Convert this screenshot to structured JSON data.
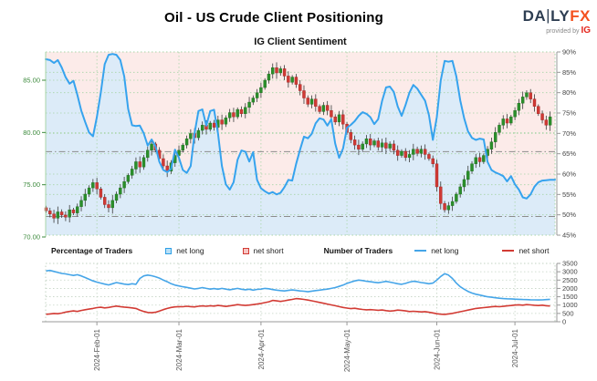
{
  "header": {
    "title": "Oil - US Crude Client Positioning",
    "subtitle": "IG Client Sentiment",
    "logo": {
      "brand_da": "DA",
      "brand_bar": "|",
      "brand_ly": "LY",
      "brand_fx": "FX",
      "provided_by": "provided by",
      "ig": "IG"
    }
  },
  "legend": {
    "percentage_group": "Percentage of Traders",
    "number_group": "Number of Traders",
    "pct_net_long": "net long",
    "pct_net_short": "net short",
    "num_net_long": "net long",
    "num_net_short": "net short"
  },
  "colors": {
    "sentiment_line": "#36a3ee",
    "fill_above_line": "#fcebe9",
    "fill_below_line": "#dcebf8",
    "candle_up": "#2a8f2a",
    "candle_up_edge": "#1e6b1e",
    "candle_down": "#cf3a34",
    "candle_down_edge": "#a02020",
    "wick": "#3a3a3a",
    "grid_green": "#a8d5a8",
    "grid_gray": "#c3d3c3",
    "price_label_green": "#3c8a3c",
    "axis_label_gray": "#444444",
    "date_label_gray": "#555555",
    "ref_line_gray": "#8c8c8c",
    "count_long_blue": "#45a5e8",
    "count_short_red": "#d23b34",
    "axis_line": "#999999"
  },
  "chart_data": [
    {
      "type": "candlestick+line",
      "title": "IG Client Sentiment",
      "description": "Daily US Crude price candles (left axis) overlaid with IG client net-long sentiment percent (right axis); area above sentiment line shaded red, below shaded blue",
      "price_axis": {
        "side": "left",
        "tick_values": [
          85,
          80,
          75,
          70
        ],
        "tick_labels": [
          "85.00",
          "80.00",
          "75.00",
          "70.00"
        ],
        "min": 70.0,
        "max": 87.6
      },
      "percent_axis": {
        "side": "right",
        "min": 45,
        "max": 90,
        "step": 5,
        "tick_values": [
          90,
          85,
          80,
          75,
          70,
          65,
          60,
          55,
          50,
          45
        ],
        "tick_labels": [
          "90%",
          "85%",
          "80%",
          "75%",
          "70%",
          "65%",
          "60%",
          "55%",
          "50%",
          "45%"
        ]
      },
      "x_axis": {
        "month_labels": [
          "2024-Feb-01",
          "2024-Mar-01",
          "2024-Apr-01",
          "2024-May-01",
          "2024-Jun-01",
          "2024-Jul-01"
        ],
        "month_day_index": [
          13,
          34,
          55,
          77,
          100,
          120
        ],
        "days_total": 130,
        "date_range": "2024-Jan-15 to 2024-Jul-12"
      },
      "reference_lines_pct": [
        65.5,
        49.6
      ],
      "grid": true,
      "wick_extra": 0.32,
      "closes": [
        72.5,
        72.2,
        71.8,
        72.4,
        72.1,
        71.9,
        72.6,
        72.3,
        72.9,
        73.5,
        74.1,
        74.7,
        75.2,
        74.6,
        73.8,
        73.1,
        72.8,
        73.5,
        74.1,
        74.7,
        75.3,
        75.9,
        76.5,
        77.2,
        76.7,
        77.6,
        78.3,
        78.9,
        78.3,
        77.5,
        76.8,
        76.3,
        77.1,
        77.8,
        78.3,
        78.8,
        79.4,
        79.9,
        79.5,
        80.2,
        80.7,
        80.3,
        80.9,
        80.5,
        81.2,
        80.8,
        81.4,
        81.9,
        81.5,
        82.2,
        81.8,
        82.4,
        82.9,
        83.3,
        83.8,
        84.3,
        85.0,
        85.6,
        86.2,
        85.7,
        86.1,
        85.4,
        84.8,
        85.3,
        84.6,
        84.0,
        83.3,
        82.7,
        83.2,
        82.5,
        82.0,
        82.6,
        82.1,
        81.5,
        81.0,
        81.7,
        80.8,
        80.0,
        79.3,
        78.8,
        78.4,
        78.9,
        79.4,
        78.8,
        79.2,
        78.6,
        79.0,
        78.5,
        78.9,
        78.3,
        77.8,
        78.2,
        77.6,
        77.9,
        78.4,
        78.0,
        78.4,
        77.9,
        77.5,
        77.0,
        74.8,
        73.2,
        72.6,
        73.0,
        73.4,
        74.1,
        74.8,
        75.5,
        76.3,
        77.0,
        77.6,
        77.2,
        77.8,
        78.4,
        79.1,
        80.0,
        80.7,
        81.3,
        80.9,
        81.5,
        82.1,
        82.8,
        83.4,
        83.8,
        83.2,
        82.5,
        81.8,
        81.2,
        80.7,
        81.5
      ],
      "sentiment_pct": [
        88.2,
        88.0,
        87.3,
        88.0,
        86.2,
        83.8,
        82.2,
        82.9,
        79.5,
        75.6,
        72.8,
        70.2,
        69.3,
        74.0,
        80.0,
        87.0,
        89.3,
        89.5,
        89.3,
        88.0,
        84.0,
        76.0,
        72.0,
        71.8,
        71.9,
        70.0,
        67.0,
        68.5,
        66.9,
        63.0,
        61.0,
        60.5,
        61.3,
        66.0,
        64.0,
        61.0,
        60.3,
        62.0,
        70.0,
        75.5,
        75.9,
        71.9,
        75.5,
        75.8,
        70.0,
        62.0,
        57.5,
        56.2,
        58.0,
        63.5,
        65.8,
        65.5,
        63.1,
        65.4,
        58.6,
        56.5,
        55.8,
        55.2,
        55.6,
        55.0,
        55.4,
        56.8,
        58.6,
        58.4,
        62.5,
        66.0,
        69.2,
        68.8,
        69.9,
        72.5,
        73.7,
        73.4,
        71.9,
        73.5,
        67.5,
        64.0,
        66.3,
        71.4,
        72.1,
        73.0,
        74.3,
        75.2,
        74.8,
        74.0,
        72.3,
        73.5,
        78.0,
        81.3,
        81.5,
        80.2,
        76.6,
        74.3,
        77.0,
        80.0,
        81.9,
        81.0,
        79.5,
        78.0,
        74.5,
        68.4,
        74.0,
        83.0,
        87.8,
        87.6,
        87.8,
        84.0,
        78.1,
        73.7,
        70.5,
        68.9,
        68.4,
        68.7,
        68.5,
        63.0,
        61.0,
        60.4,
        60.0,
        59.5,
        58.2,
        59.5,
        57.5,
        56.2,
        54.3,
        54.0,
        55.0,
        56.9,
        58.0,
        58.4,
        58.5,
        58.6
      ]
    },
    {
      "type": "line",
      "description": "Number of traders net long and net short (daily)",
      "y_axis": {
        "side": "right",
        "min": 0,
        "max": 3500,
        "step": 500,
        "tick_labels": [
          "3500",
          "3000",
          "2500",
          "2000",
          "1500",
          "1000",
          "500",
          "0"
        ]
      },
      "grid": true,
      "series": [
        {
          "name": "net long",
          "color_key": "count_long_blue",
          "values": [
            3050,
            3080,
            3020,
            2960,
            2900,
            2870,
            2820,
            2780,
            2820,
            2750,
            2650,
            2550,
            2450,
            2380,
            2320,
            2260,
            2210,
            2280,
            2350,
            2310,
            2260,
            2230,
            2280,
            2250,
            2600,
            2750,
            2800,
            2760,
            2700,
            2620,
            2500,
            2400,
            2280,
            2200,
            2150,
            2100,
            2060,
            2010,
            1970,
            2000,
            2050,
            2000,
            1960,
            1990,
            1950,
            2000,
            1960,
            1920,
            1960,
            2000,
            1950,
            1920,
            1950,
            1900,
            1940,
            1960,
            2000,
            1980,
            1930,
            1900,
            1870,
            1850,
            1880,
            1910,
            1880,
            1850,
            1830,
            1800,
            1840,
            1870,
            1900,
            1930,
            1960,
            2000,
            2050,
            2120,
            2200,
            2300,
            2380,
            2450,
            2500,
            2470,
            2430,
            2400,
            2370,
            2340,
            2380,
            2420,
            2380,
            2330,
            2280,
            2250,
            2300,
            2380,
            2430,
            2400,
            2350,
            2320,
            2280,
            2320,
            2500,
            2720,
            2880,
            2800,
            2600,
            2320,
            2100,
            1950,
            1820,
            1720,
            1650,
            1600,
            1550,
            1500,
            1470,
            1440,
            1410,
            1390,
            1380,
            1370,
            1355,
            1345,
            1335,
            1330,
            1320,
            1310,
            1305,
            1315,
            1330,
            1345
          ]
        },
        {
          "name": "net short",
          "color_key": "count_short_red",
          "values": [
            450,
            470,
            500,
            480,
            520,
            580,
            620,
            650,
            620,
            680,
            720,
            760,
            800,
            850,
            870,
            830,
            860,
            900,
            940,
            910,
            880,
            860,
            830,
            800,
            700,
            620,
            560,
            540,
            570,
            640,
            730,
            800,
            860,
            890,
            910,
            900,
            930,
            910,
            890,
            930,
            950,
            930,
            960,
            940,
            980,
            950,
            920,
            950,
            990,
            1030,
            1000,
            980,
            1000,
            1030,
            1060,
            1100,
            1150,
            1200,
            1280,
            1250,
            1220,
            1260,
            1300,
            1340,
            1390,
            1370,
            1340,
            1300,
            1260,
            1210,
            1160,
            1110,
            1060,
            1010,
            960,
            910,
            860,
            820,
            790,
            810,
            770,
            740,
            715,
            730,
            710,
            690,
            705,
            665,
            640,
            660,
            700,
            680,
            650,
            615,
            630,
            610,
            590,
            605,
            570,
            530,
            480,
            455,
            445,
            470,
            505,
            550,
            600,
            650,
            700,
            750,
            800,
            825,
            850,
            870,
            895,
            920,
            905,
            925,
            950,
            975,
            1000,
            1015,
            995,
            1030,
            1010,
            990,
            975,
            995,
            965,
            945
          ]
        }
      ]
    }
  ]
}
